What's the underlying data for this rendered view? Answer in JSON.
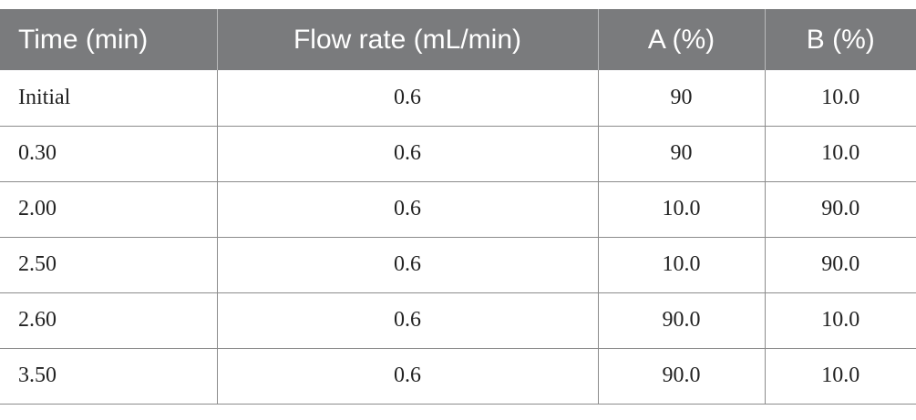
{
  "table": {
    "headers": [
      "Time (min)",
      "Flow rate (mL/min)",
      "A (%)",
      "B (%)"
    ],
    "rows": [
      [
        "Initial",
        "0.6",
        "90",
        "10.0"
      ],
      [
        "0.30",
        "0.6",
        "90",
        "10.0"
      ],
      [
        "2.00",
        "0.6",
        "10.0",
        "90.0"
      ],
      [
        "2.50",
        "0.6",
        "10.0",
        "90.0"
      ],
      [
        "2.60",
        "0.6",
        "90.0",
        "10.0"
      ],
      [
        "3.50",
        "0.6",
        "90.0",
        "10.0"
      ]
    ]
  },
  "colors": {
    "header_bg": "#7a7b7d",
    "header_text": "#ffffff",
    "grid_line": "#8c8c8c"
  }
}
